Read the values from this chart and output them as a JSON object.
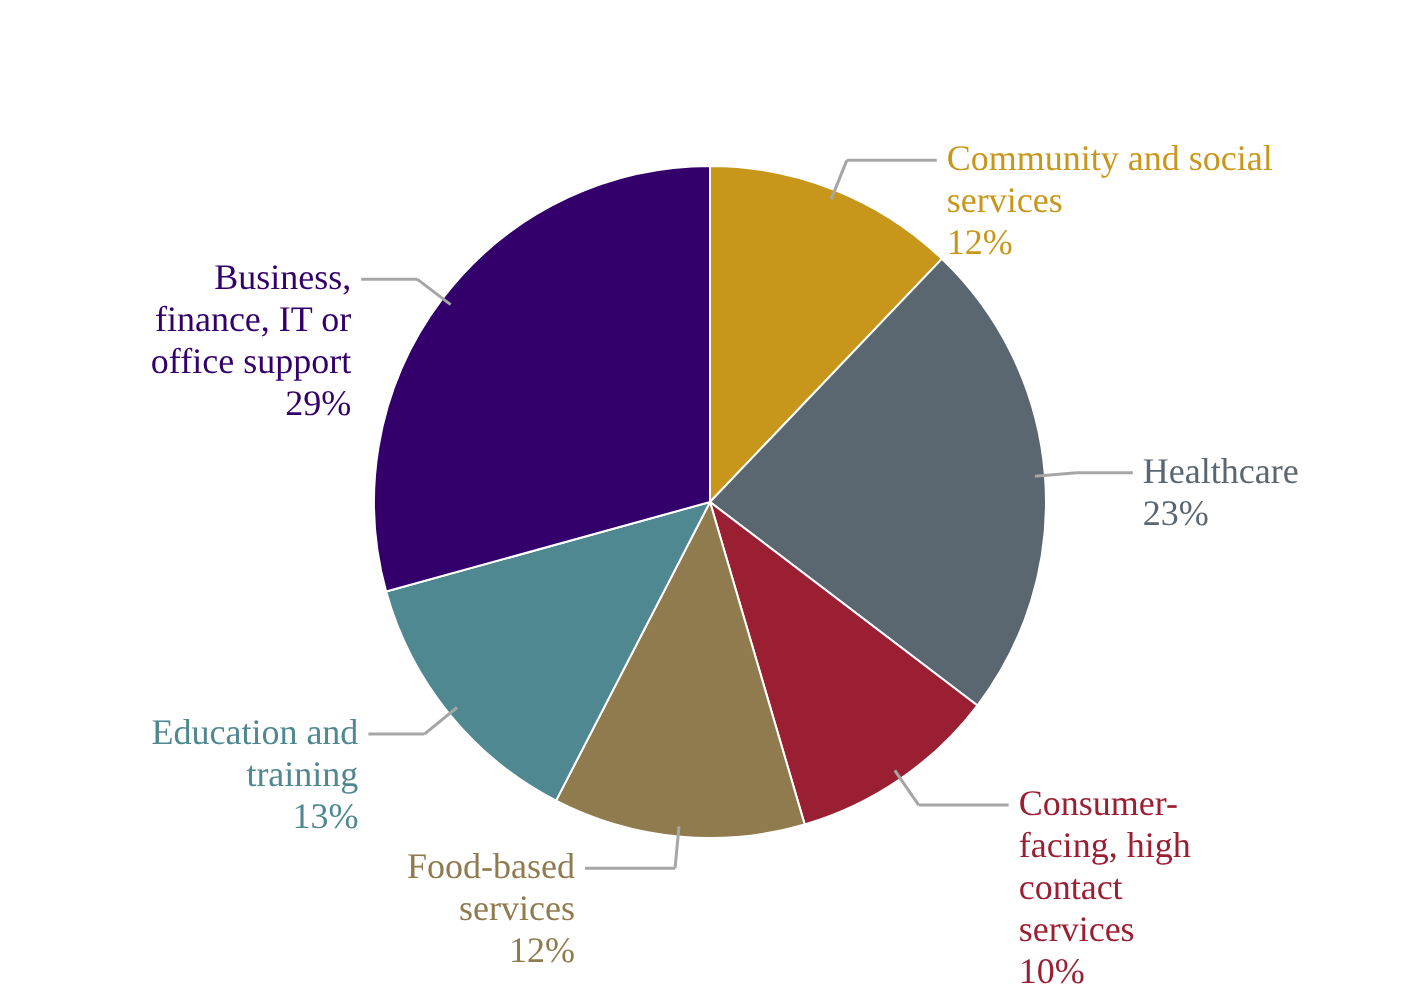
{
  "chart_data": {
    "type": "pie",
    "categories": [
      "Community and social services",
      "Healthcare",
      "Consumer-facing, high contact services",
      "Food-based services",
      "Education and training",
      "Business, finance, IT or office support"
    ],
    "values": [
      12,
      23,
      10,
      12,
      13,
      29
    ],
    "value_labels": [
      "12%",
      "23%",
      "10%",
      "12%",
      "13%",
      "29%"
    ],
    "colors": [
      "#c8961a",
      "#5b6770",
      "#9b1f33",
      "#8f7b4e",
      "#4f8890",
      "#33006b"
    ]
  }
}
